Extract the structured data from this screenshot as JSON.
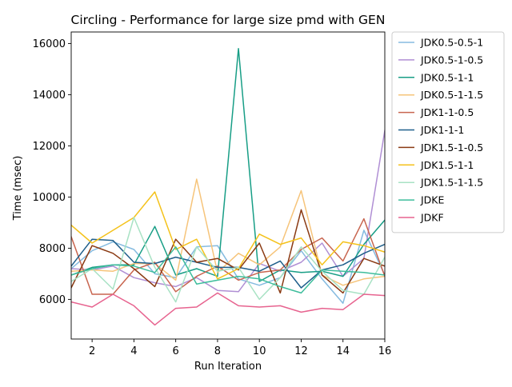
{
  "chart_data": {
    "type": "line",
    "title": "Circling - Performance for large size pmd with GEN",
    "xlabel": "Run Iteration",
    "ylabel": "Time (msec)",
    "xlim": [
      1,
      16
    ],
    "ylim": [
      4450,
      16450
    ],
    "xticks": [
      2,
      4,
      6,
      8,
      10,
      12,
      14,
      16
    ],
    "yticks": [
      6000,
      8000,
      10000,
      12000,
      14000,
      16000
    ],
    "grid": false,
    "legend_position": "outside-right",
    "x": [
      1,
      2,
      3,
      4,
      5,
      6,
      7,
      8,
      9,
      10,
      11,
      12,
      13,
      14,
      15,
      16
    ],
    "series": [
      {
        "name": "JDK0.5-0.5-1",
        "color": "#85bbe0",
        "values": [
          7200,
          7900,
          8250,
          7950,
          7000,
          6850,
          8050,
          8100,
          6800,
          6550,
          6850,
          7900,
          6800,
          5850,
          8700,
          6950
        ]
      },
      {
        "name": "JDK0.5-1-0.5",
        "color": "#b08fd4",
        "values": [
          7200,
          7150,
          7300,
          6850,
          6650,
          6500,
          6850,
          6350,
          6300,
          7400,
          7100,
          7450,
          8200,
          6900,
          7600,
          12600
        ]
      },
      {
        "name": "JDK0.5-1-1",
        "color": "#189e86",
        "values": [
          6950,
          7250,
          7350,
          7350,
          8850,
          6950,
          7200,
          6900,
          15800,
          6700,
          7150,
          7050,
          7100,
          6900,
          8150,
          9100
        ]
      },
      {
        "name": "JDK0.5-1-1.5",
        "color": "#f6c47a",
        "values": [
          7100,
          7150,
          7100,
          7400,
          7400,
          6750,
          10700,
          7050,
          7800,
          7350,
          8050,
          10250,
          6950,
          6550,
          6800,
          6900
        ]
      },
      {
        "name": "JDK1-1-0.5",
        "color": "#c8654f",
        "values": [
          8450,
          6200,
          6200,
          7150,
          7450,
          6300,
          6900,
          7300,
          6750,
          7050,
          7150,
          7950,
          8400,
          7500,
          9150,
          6900
        ]
      },
      {
        "name": "JDK1-1-1",
        "color": "#1f5f8b",
        "values": [
          7300,
          8350,
          8300,
          7450,
          7400,
          7650,
          7450,
          7250,
          7250,
          7100,
          7500,
          6450,
          7150,
          7350,
          7800,
          8150
        ]
      },
      {
        "name": "JDK1.5-1-0.5",
        "color": "#8a3a13",
        "values": [
          6450,
          8100,
          7800,
          7200,
          6500,
          8350,
          7450,
          7600,
          7150,
          8200,
          6250,
          9500,
          6950,
          6250,
          7600,
          7300
        ]
      },
      {
        "name": "JDK1.5-1-1",
        "color": "#f4c21b",
        "values": [
          8900,
          8200,
          8700,
          9200,
          10200,
          7950,
          8350,
          6800,
          7200,
          8550,
          8150,
          8400,
          7350,
          8250,
          8100,
          7850
        ]
      },
      {
        "name": "JDK1.5-1-1.5",
        "color": "#a8e2c4",
        "values": [
          6700,
          7200,
          6400,
          9200,
          7250,
          5900,
          8050,
          7100,
          7250,
          6000,
          6850,
          8050,
          7100,
          6350,
          6200,
          7650
        ]
      },
      {
        "name": "JDKE",
        "color": "#3ebd9c",
        "values": [
          6950,
          7200,
          7350,
          7300,
          7050,
          8050,
          6600,
          6750,
          6900,
          6800,
          6500,
          6250,
          7150,
          7100,
          7050,
          6950
        ]
      },
      {
        "name": "JDKF",
        "color": "#e7638f",
        "values": [
          5900,
          5700,
          6200,
          5750,
          5000,
          5650,
          5700,
          6250,
          5750,
          5700,
          5750,
          5500,
          5650,
          5600,
          6200,
          6150
        ]
      }
    ]
  }
}
